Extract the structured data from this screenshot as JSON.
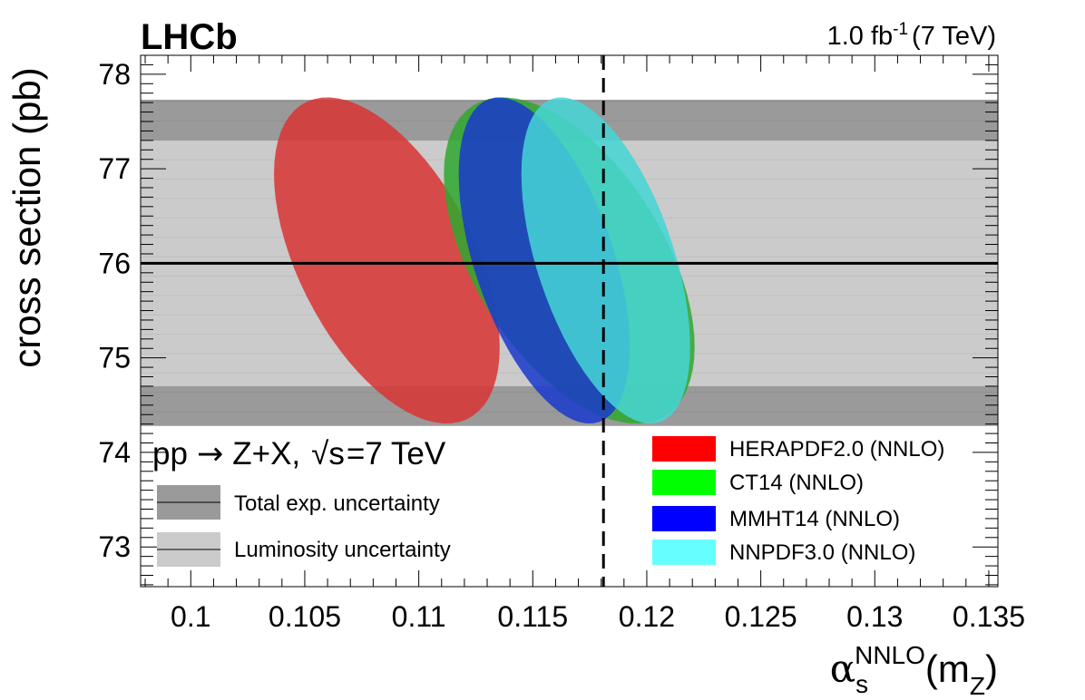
{
  "chart_data": {
    "type": "scatter",
    "title": "LHCb",
    "luminosity_label": "1.0 fb",
    "luminosity_exp": "-1",
    "luminosity_energy": "(7 TeV)",
    "xlabel": {
      "alpha": "α",
      "sub": "s",
      "sup": "NNLO",
      "rest": "(m",
      "z": "Z",
      "close": ")"
    },
    "ylabel": "cross section (pb)",
    "xlim": [
      0.0978,
      0.1354
    ],
    "ylim": [
      72.58,
      78.2
    ],
    "x_ticks": [
      0.1,
      0.105,
      0.11,
      0.115,
      0.12,
      0.125,
      0.13,
      0.135
    ],
    "x_tick_labels": [
      "0.1",
      "0.105",
      "0.11",
      "0.115",
      "0.12",
      "0.125",
      "0.13",
      "0.135"
    ],
    "y_ticks": [
      73,
      74,
      75,
      76,
      77,
      78
    ],
    "y_tick_labels": [
      "73",
      "74",
      "75",
      "76",
      "77",
      "78"
    ],
    "measurement": 76.0,
    "luminosity_band": [
      74.7,
      77.3
    ],
    "total_exp_band": [
      74.28,
      77.73
    ],
    "alpha_s_reference": 0.1181,
    "process": {
      "pp": "pp",
      "arrow": "→",
      "final": "Z+X,",
      "sqrt_s": "√s",
      "energy": "=7 TeV"
    },
    "uncertainty_legend": [
      {
        "label": "Total exp. uncertainty",
        "color": "#9a9a9a"
      },
      {
        "label": "Luminosity uncertainty",
        "color": "#cbcbcb"
      }
    ],
    "series": [
      {
        "name": "HERAPDF2.0 (NNLO)",
        "color": "#ff0000",
        "fill_color": "#d93434",
        "center": [
          0.1086,
          76.03
        ],
        "x_range": [
          0.1035,
          0.1134
        ],
        "y_range": [
          74.28,
          77.73
        ]
      },
      {
        "name": "CT14 (NNLO)",
        "color": "#00ff00",
        "fill_color": "#2fa82f",
        "center": [
          0.1166,
          76.03
        ],
        "x_range": [
          0.1107,
          0.1217
        ],
        "y_range": [
          74.28,
          77.73
        ]
      },
      {
        "name": "MMHT14 (NNLO)",
        "color": "#0000ff",
        "fill_color": "#1a3acb",
        "center": [
          0.1155,
          76.03
        ],
        "x_range": [
          0.1115,
          0.119
        ],
        "y_range": [
          74.28,
          77.73
        ]
      },
      {
        "name": "NNPDF3.0 (NNLO)",
        "color": "#66ffff",
        "fill_color": "#45d6d6",
        "center": [
          0.1182,
          76.03
        ],
        "x_range": [
          0.1148,
          0.1222
        ],
        "y_range": [
          74.28,
          77.73
        ]
      }
    ]
  }
}
